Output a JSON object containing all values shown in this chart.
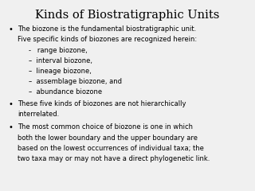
{
  "title": "Kinds of Biostratigraphic Units",
  "background_color": "#f0f0f0",
  "title_fontsize": 10.5,
  "text_fontsize": 6.0,
  "title_font": "DejaVu Serif",
  "body_font": "DejaVu Sans",
  "bullets": [
    {
      "lines": [
        "The biozone is the fundamental biostratigraphic unit.",
        "Five specific kinds of biozones are recognized herein:"
      ],
      "sub_items": [
        "-   range biozone,",
        "–  interval biozone,",
        "–  lineage biozone,",
        "–  assemblage biozone, and",
        "–  abundance biozone"
      ]
    },
    {
      "lines": [
        "These five kinds of biozones are not hierarchically",
        "interrelated."
      ],
      "sub_items": []
    },
    {
      "lines": [
        "The most common choice of biozone is one in which",
        "both the lower boundary and the upper boundary are",
        "based on the lowest occurrences of individual taxa; the",
        "two taxa may or may not have a direct phylogenetic link."
      ],
      "sub_items": []
    }
  ]
}
